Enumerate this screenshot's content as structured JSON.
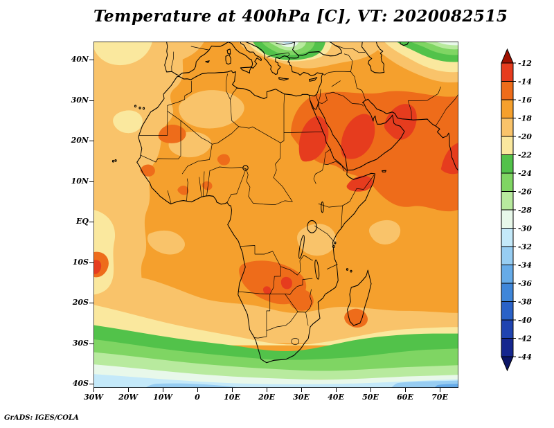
{
  "title": "Temperature at 400hPa [C], VT: 2020082515",
  "attribution": "GrADS: IGES/COLA",
  "axes": {
    "lat_ticks": [
      {
        "label": "40N",
        "value": 40
      },
      {
        "label": "30N",
        "value": 30
      },
      {
        "label": "20N",
        "value": 20
      },
      {
        "label": "10N",
        "value": 10
      },
      {
        "label": "EQ",
        "value": 0
      },
      {
        "label": "10S",
        "value": -10
      },
      {
        "label": "20S",
        "value": -20
      },
      {
        "label": "30S",
        "value": -30
      },
      {
        "label": "40S",
        "value": -40
      }
    ],
    "lon_ticks": [
      {
        "label": "30W",
        "value": -30
      },
      {
        "label": "20W",
        "value": -20
      },
      {
        "label": "10W",
        "value": -10
      },
      {
        "label": "0",
        "value": 0
      },
      {
        "label": "10E",
        "value": 10
      },
      {
        "label": "20E",
        "value": 20
      },
      {
        "label": "30E",
        "value": 30
      },
      {
        "label": "40E",
        "value": 40
      },
      {
        "label": "50E",
        "value": 50
      },
      {
        "label": "60E",
        "value": 60
      },
      {
        "label": "70E",
        "value": 70
      }
    ]
  },
  "palette": {
    "tri_top": "#a01000",
    "m12_14": "#e63c1e",
    "m14_16": "#ee6c1a",
    "m16_18": "#f5a02d",
    "m18_20": "#f9c36a",
    "m20_22": "#fae89e",
    "m22_24": "#52c24a",
    "m24_26": "#7fd563",
    "m26_28": "#b8ea9e",
    "m28_30": "#e8f8ea",
    "m30_32": "#c4e9f9",
    "m32_34": "#97cdf2",
    "m34_36": "#66abe8",
    "m36_38": "#3f86d9",
    "m38_40": "#2a62c8",
    "m40_42": "#1f43b0",
    "m42_44": "#15268e",
    "tri_bot": "#0c1566"
  },
  "colorbar": {
    "levels": [
      "-12",
      "-14",
      "-16",
      "-18",
      "-20",
      "-22",
      "-24",
      "-26",
      "-28",
      "-30",
      "-32",
      "-34",
      "-36",
      "-38",
      "-40",
      "-42",
      "-44"
    ],
    "colors": [
      "#a01000",
      "#e63c1e",
      "#ee6c1a",
      "#f5a02d",
      "#f9c36a",
      "#fae89e",
      "#52c24a",
      "#7fd563",
      "#b8ea9e",
      "#e8f8ea",
      "#c4e9f9",
      "#97cdf2",
      "#66abe8",
      "#3f86d9",
      "#2a62c8",
      "#1f43b0",
      "#15268e",
      "#0c1566"
    ]
  },
  "chart_data": {
    "type": "heatmap",
    "subtype": "filled_contour_map",
    "title": "Temperature at 400hPa [C], VT: 2020082515",
    "variable": "Temperature",
    "level_hPa": 400,
    "units": "C",
    "valid_time": "2020082515",
    "xlabel": "longitude",
    "ylabel": "latitude",
    "x_ticks": [
      "30W",
      "20W",
      "10W",
      "0",
      "10E",
      "20E",
      "30E",
      "40E",
      "50E",
      "60E",
      "70E"
    ],
    "y_ticks": [
      "40N",
      "30N",
      "20N",
      "10N",
      "EQ",
      "10S",
      "20S",
      "30S",
      "40S"
    ],
    "lon_range_deg": [
      -30,
      75
    ],
    "lat_range_deg": [
      -41,
      44.5
    ],
    "contour_interval_C": 2,
    "levels_C": [
      -44,
      -42,
      -40,
      -38,
      -36,
      -34,
      -32,
      -30,
      -28,
      -26,
      -24,
      -22,
      -20,
      -18,
      -16,
      -14,
      -12
    ],
    "grid": false,
    "legend_position": "right",
    "palette": [
      {
        "min": -12,
        "max": null,
        "color": "#a01000"
      },
      {
        "min": -14,
        "max": -12,
        "color": "#e63c1e"
      },
      {
        "min": -16,
        "max": -14,
        "color": "#ee6c1a"
      },
      {
        "min": -18,
        "max": -16,
        "color": "#f5a02d"
      },
      {
        "min": -20,
        "max": -18,
        "color": "#f9c36a"
      },
      {
        "min": -22,
        "max": -20,
        "color": "#fae89e"
      },
      {
        "min": -24,
        "max": -22,
        "color": "#52c24a"
      },
      {
        "min": -26,
        "max": -24,
        "color": "#7fd563"
      },
      {
        "min": -28,
        "max": -26,
        "color": "#b8ea9e"
      },
      {
        "min": -30,
        "max": -28,
        "color": "#e8f8ea"
      },
      {
        "min": -32,
        "max": -30,
        "color": "#c4e9f9"
      },
      {
        "min": -34,
        "max": -32,
        "color": "#97cdf2"
      },
      {
        "min": -36,
        "max": -34,
        "color": "#66abe8"
      },
      {
        "min": -38,
        "max": -36,
        "color": "#3f86d9"
      },
      {
        "min": -40,
        "max": -38,
        "color": "#2a62c8"
      },
      {
        "min": -42,
        "max": -40,
        "color": "#1f43b0"
      },
      {
        "min": -44,
        "max": -42,
        "color": "#15268e"
      },
      {
        "min": null,
        "max": -44,
        "color": "#0c1566"
      }
    ],
    "features": [
      "Warmest air (-12 to -16 C) over northeast Africa, the Red Sea, the Arabian Peninsula, the Persian Gulf and the Horn of Africa",
      "Secondary warm patch (-12 to -16 C) over Angola/Zambia/Zimbabwe near 15-30E, 10-20S",
      "Small warm patch (-12 to -14 C) at the western map edge near 10-13S",
      "Broad -16 to -18 C over most of tropical Africa and the Mediterranean",
      "-18 to -22 C over the eastern tropical Atlantic west of about 15W",
      "Cold band -22 to -28 C spanning the map between roughly 27S and 37S",
      "-28 to -34 C along the southern edge (37S-41S), coldest toward the southeast corner",
      "Cold pocket -24 to -30 C over the Balkans/Black Sea at the northern map edge near 15-35E",
      "Cold region -20 to -28 C in the northeast corner (Caspian / Central Asia)"
    ]
  }
}
